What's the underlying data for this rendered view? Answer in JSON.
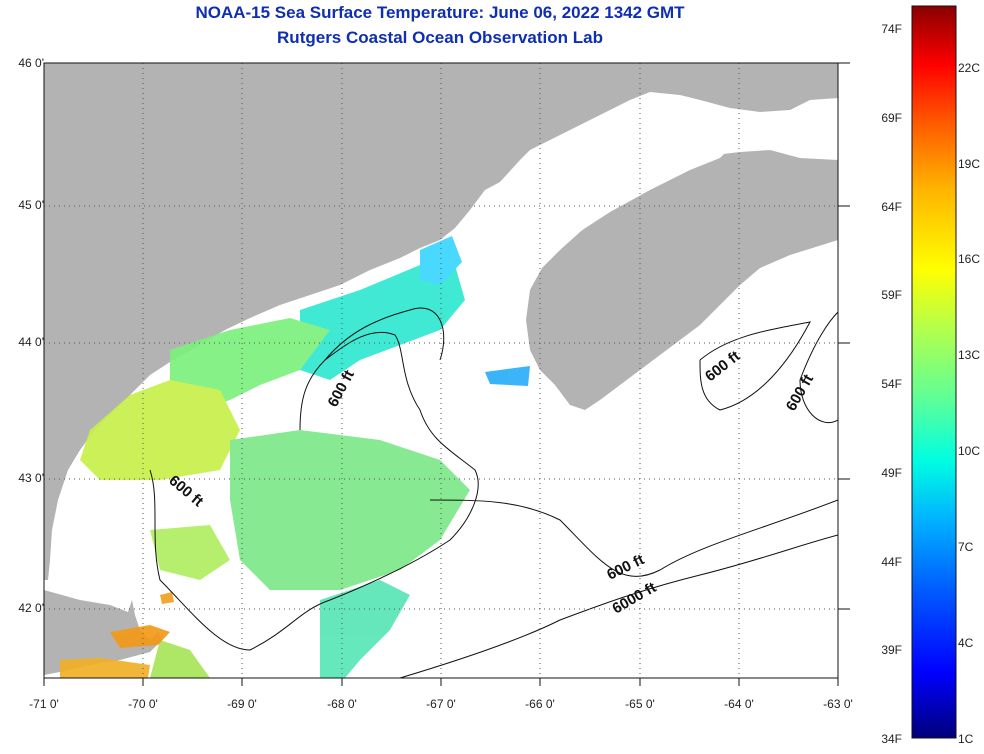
{
  "title": {
    "line1": "NOAA-15 Sea Surface Temperature:  June 06, 2022 1342 GMT",
    "line2": "Rutgers Coastal Ocean Observation Lab"
  },
  "map": {
    "lon_range": [
      -71,
      -63
    ],
    "lat_range": [
      41.5,
      46
    ],
    "lat_ticks": [
      "46 0'",
      "45 0'",
      "44 0'",
      "43 0'",
      "42 0'"
    ],
    "lon_ticks": [
      "-71 0'",
      "-70 0'",
      "-69 0'",
      "-68 0'",
      "-67 0'",
      "-66 0'",
      "-65 0'",
      "-64 0'",
      "-63 0'"
    ],
    "contour_labels": [
      "600 ft",
      "600 ft",
      "600 ft",
      "600 ft",
      "6000 ft",
      "600 ft"
    ],
    "land_color": "#b3b3b3",
    "no_data_color": "#ffffff"
  },
  "colorbar": {
    "fahrenheit_labels": [
      "74F",
      "69F",
      "64F",
      "59F",
      "54F",
      "49F",
      "44F",
      "39F",
      "34F"
    ],
    "celsius_labels": [
      "22C",
      "19C",
      "16C",
      "13C",
      "10C",
      "7C",
      "4C",
      "1C"
    ],
    "scale": [
      "#00007a",
      "#0000ff",
      "#005aff",
      "#00b4ff",
      "#00ffe0",
      "#5aff9a",
      "#b4ff4a",
      "#ffff00",
      "#ffb400",
      "#ff5a00",
      "#ff0000",
      "#8a0000"
    ]
  }
}
